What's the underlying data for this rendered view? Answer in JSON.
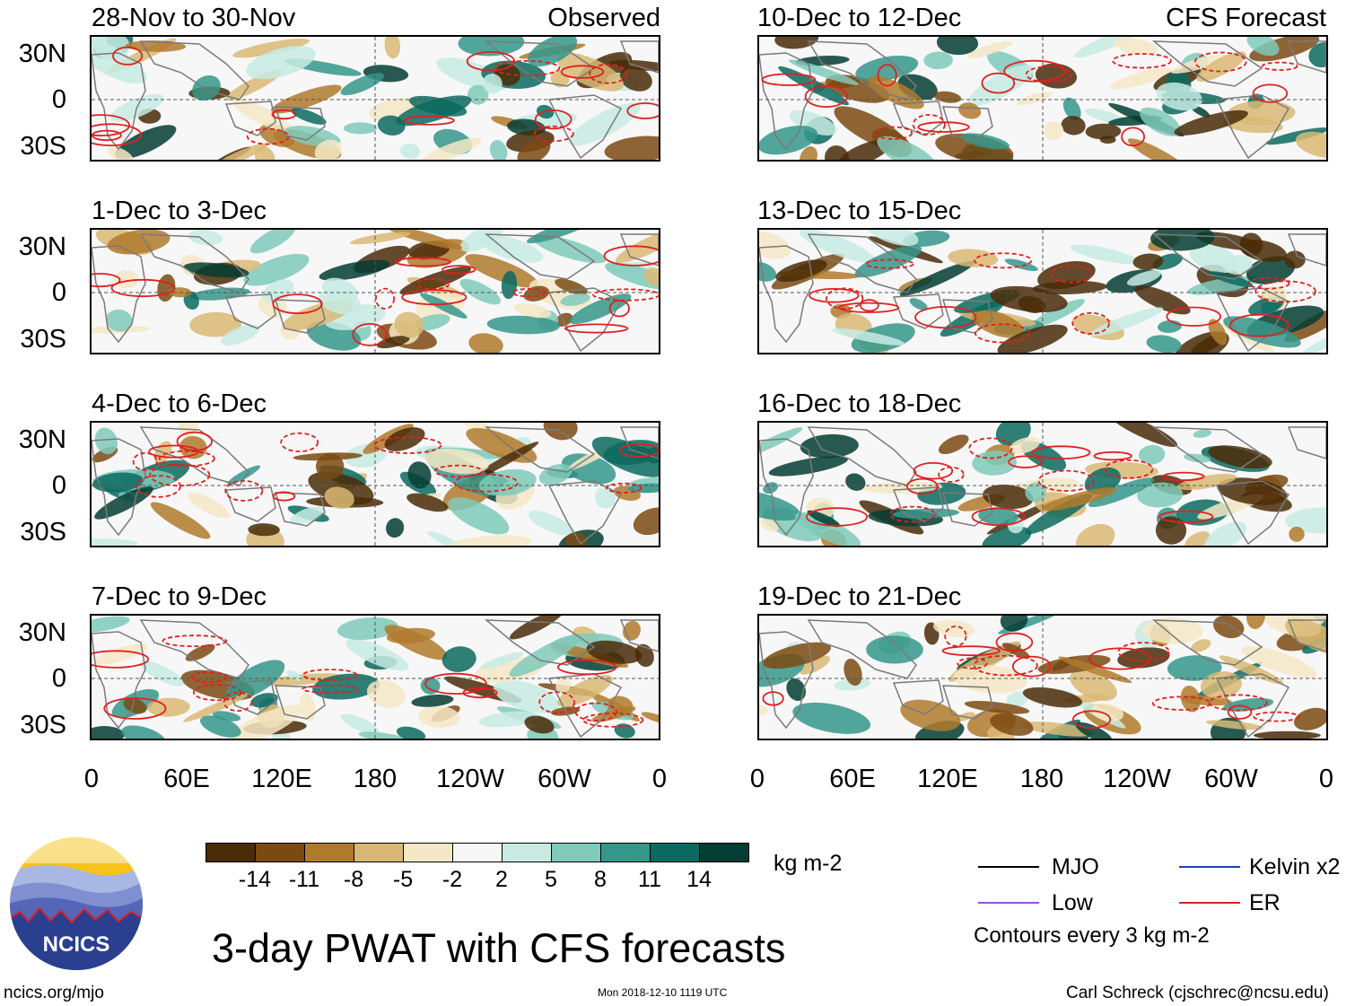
{
  "panels": {
    "left": [
      {
        "title": "28-Nov to 30-Nov",
        "tag": "Observed"
      },
      {
        "title": "1-Dec to 3-Dec",
        "tag": ""
      },
      {
        "title": "4-Dec to 6-Dec",
        "tag": ""
      },
      {
        "title": "7-Dec to 9-Dec",
        "tag": ""
      }
    ],
    "right": [
      {
        "title": "10-Dec to 12-Dec",
        "tag": "CFS Forecast"
      },
      {
        "title": "13-Dec to 15-Dec",
        "tag": ""
      },
      {
        "title": "16-Dec to 18-Dec",
        "tag": ""
      },
      {
        "title": "19-Dec to 21-Dec",
        "tag": ""
      }
    ]
  },
  "lat_labels": [
    "30N",
    "0",
    "30S"
  ],
  "lon_labels": [
    "0",
    "60E",
    "120E",
    "180",
    "120W",
    "60W",
    "0"
  ],
  "colorbar": {
    "ticks": [
      "-14",
      "-11",
      "-8",
      "-5",
      "-2",
      "2",
      "5",
      "8",
      "11",
      "14"
    ],
    "colors": [
      "#4a2c08",
      "#7b4a12",
      "#b07a2c",
      "#d9b874",
      "#f5e8c6",
      "#f7f7f7",
      "#c7ebe3",
      "#7fcabb",
      "#35968a",
      "#0b6a5f",
      "#033d33"
    ],
    "units": "kg m-2"
  },
  "title": "3-day PWAT with CFS forecasts",
  "legend": {
    "items": [
      {
        "label": "MJO",
        "color": "#000000"
      },
      {
        "label": "Kelvin x2",
        "color": "#1f3fbf"
      },
      {
        "label": "Low",
        "color": "#9a4fd6"
      },
      {
        "label": "ER",
        "color": "#e02020"
      }
    ],
    "note": "Contours every 3 kg m-2"
  },
  "logo": {
    "text": "NCICS"
  },
  "footer": {
    "left": "ncics.org/mjo",
    "center": "Mon 2018-12-10 1119 UTC",
    "right": "Carl Schreck (cjschrec@ncsu.edu)"
  }
}
